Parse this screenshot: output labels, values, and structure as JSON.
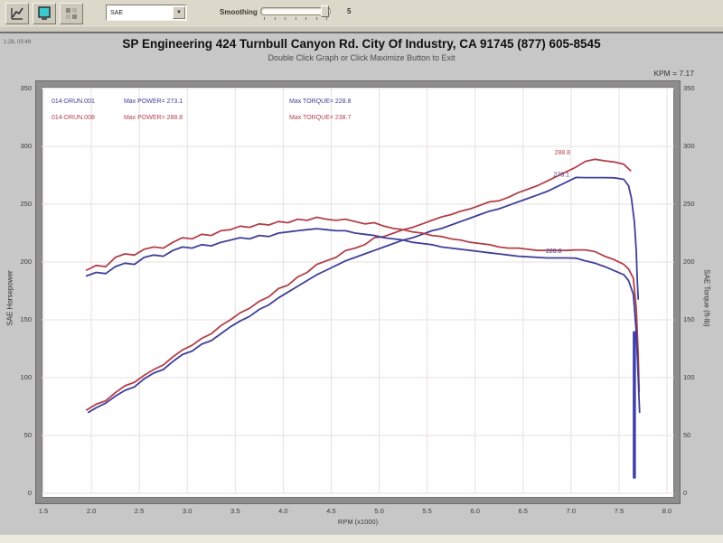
{
  "toolbar": {
    "buttons": [
      {
        "name": "graph"
      },
      {
        "name": "display"
      },
      {
        "name": "grid"
      }
    ],
    "combo_value": "SAE",
    "smoothing_label": "Smoothing",
    "smoothing_value": "5"
  },
  "header": {
    "timestamp": "1:28, 03:49",
    "title": "SP Engineering 424 Turnbull Canyon Rd. City Of Industry, CA 91745 (877) 605-8545",
    "subtitle": "Double Click Graph or Click Maximize Button to Exit",
    "rpm_readout": "KPM = 7.17"
  },
  "legend": {
    "rows": [
      {
        "run": "014-DRUN.001",
        "power": "Max POWER= 273.1",
        "torque": "Max TORQUE= 228.8",
        "color": "#3f3f99"
      },
      {
        "run": "014-DRUN.008",
        "power": "Max POWER= 288.8",
        "torque": "Max TORQUE= 238.7",
        "color": "#b2404a"
      }
    ]
  },
  "chart_data": {
    "type": "line",
    "xlabel": "RPM (x1000)",
    "ylabel_left": "SAE Horsepower",
    "ylabel_right": "SAE Torque (ft-lb)",
    "xlim": [
      1.5,
      8.0
    ],
    "ylim": [
      0,
      350
    ],
    "grid": true,
    "grid_color": "#e8dfdf",
    "legend_position": "top-left-inside",
    "x_ticks": [
      1.5,
      2.0,
      2.5,
      3.0,
      3.5,
      4.0,
      4.5,
      5.0,
      5.5,
      6.0,
      6.5,
      7.0,
      7.5,
      8.0
    ],
    "y_ticks": [
      0,
      50,
      100,
      150,
      200,
      250,
      300,
      350
    ],
    "series": [
      {
        "name": "run-008-power",
        "label": "014-DRUN.008 SAE Horsepower",
        "color": "#b2404a",
        "max": 288.8,
        "points": [
          [
            1.95,
            72
          ],
          [
            2.05,
            77
          ],
          [
            2.15,
            80
          ],
          [
            2.25,
            87
          ],
          [
            2.35,
            93
          ],
          [
            2.45,
            96
          ],
          [
            2.55,
            102
          ],
          [
            2.65,
            107
          ],
          [
            2.75,
            111
          ],
          [
            2.85,
            118
          ],
          [
            2.95,
            124
          ],
          [
            3.05,
            128
          ],
          [
            3.15,
            134
          ],
          [
            3.25,
            138
          ],
          [
            3.35,
            145
          ],
          [
            3.45,
            150
          ],
          [
            3.55,
            156
          ],
          [
            3.65,
            160
          ],
          [
            3.75,
            166
          ],
          [
            3.85,
            170
          ],
          [
            3.95,
            177
          ],
          [
            4.05,
            180
          ],
          [
            4.15,
            187
          ],
          [
            4.25,
            191
          ],
          [
            4.35,
            198
          ],
          [
            4.45,
            201
          ],
          [
            4.55,
            204
          ],
          [
            4.65,
            210
          ],
          [
            4.75,
            212
          ],
          [
            4.85,
            215
          ],
          [
            4.95,
            221
          ],
          [
            5.05,
            222
          ],
          [
            5.15,
            225
          ],
          [
            5.25,
            228
          ],
          [
            5.35,
            230
          ],
          [
            5.45,
            233
          ],
          [
            5.55,
            236
          ],
          [
            5.65,
            239
          ],
          [
            5.75,
            241
          ],
          [
            5.85,
            244
          ],
          [
            5.95,
            246
          ],
          [
            6.05,
            249
          ],
          [
            6.15,
            252
          ],
          [
            6.25,
            253
          ],
          [
            6.35,
            256
          ],
          [
            6.45,
            260
          ],
          [
            6.55,
            263
          ],
          [
            6.65,
            266
          ],
          [
            6.75,
            270
          ],
          [
            6.85,
            274
          ],
          [
            6.95,
            278
          ],
          [
            7.05,
            282
          ],
          [
            7.15,
            287
          ],
          [
            7.25,
            288.8
          ],
          [
            7.35,
            287.5
          ],
          [
            7.45,
            286.5
          ],
          [
            7.55,
            284.5
          ],
          [
            7.62,
            279
          ]
        ]
      },
      {
        "name": "run-001-power",
        "label": "014-DRUN.001 SAE Horsepower",
        "color": "#3f3f99",
        "max": 273.1,
        "points": [
          [
            1.97,
            70
          ],
          [
            2.05,
            74
          ],
          [
            2.15,
            78
          ],
          [
            2.25,
            84
          ],
          [
            2.35,
            89
          ],
          [
            2.45,
            92
          ],
          [
            2.55,
            99
          ],
          [
            2.65,
            104
          ],
          [
            2.75,
            107
          ],
          [
            2.85,
            114
          ],
          [
            2.95,
            120
          ],
          [
            3.05,
            123
          ],
          [
            3.15,
            129
          ],
          [
            3.25,
            132
          ],
          [
            3.35,
            138
          ],
          [
            3.45,
            144
          ],
          [
            3.55,
            149
          ],
          [
            3.65,
            153
          ],
          [
            3.75,
            159
          ],
          [
            3.85,
            163
          ],
          [
            3.95,
            169
          ],
          [
            4.05,
            174
          ],
          [
            4.15,
            179
          ],
          [
            4.25,
            184
          ],
          [
            4.35,
            189
          ],
          [
            4.45,
            193
          ],
          [
            4.55,
            197
          ],
          [
            4.65,
            201
          ],
          [
            4.75,
            204
          ],
          [
            4.85,
            207
          ],
          [
            4.95,
            210
          ],
          [
            5.05,
            213
          ],
          [
            5.15,
            216
          ],
          [
            5.25,
            219
          ],
          [
            5.35,
            221
          ],
          [
            5.45,
            224
          ],
          [
            5.55,
            227
          ],
          [
            5.65,
            229
          ],
          [
            5.75,
            232
          ],
          [
            5.85,
            235
          ],
          [
            5.95,
            238
          ],
          [
            6.05,
            241
          ],
          [
            6.15,
            244
          ],
          [
            6.25,
            246
          ],
          [
            6.35,
            249
          ],
          [
            6.45,
            252
          ],
          [
            6.55,
            255
          ],
          [
            6.65,
            258
          ],
          [
            6.75,
            261
          ],
          [
            6.85,
            265
          ],
          [
            6.95,
            269
          ],
          [
            7.05,
            273.1
          ],
          [
            7.15,
            273
          ],
          [
            7.25,
            273
          ],
          [
            7.35,
            273
          ],
          [
            7.45,
            272.8
          ],
          [
            7.55,
            271.5
          ],
          [
            7.6,
            266
          ],
          [
            7.63,
            255
          ],
          [
            7.66,
            235
          ],
          [
            7.68,
            210
          ],
          [
            7.69,
            185
          ],
          [
            7.7,
            168
          ]
        ]
      },
      {
        "name": "run-008-torque",
        "label": "014-DRUN.008 SAE Torque",
        "color": "#b2404a",
        "max": 238.7,
        "points": [
          [
            1.95,
            193
          ],
          [
            2.05,
            197
          ],
          [
            2.15,
            196
          ],
          [
            2.25,
            204
          ],
          [
            2.35,
            207
          ],
          [
            2.45,
            206
          ],
          [
            2.55,
            211
          ],
          [
            2.65,
            213
          ],
          [
            2.75,
            212
          ],
          [
            2.85,
            217
          ],
          [
            2.95,
            221
          ],
          [
            3.05,
            220
          ],
          [
            3.15,
            224
          ],
          [
            3.25,
            223
          ],
          [
            3.35,
            227
          ],
          [
            3.45,
            228
          ],
          [
            3.55,
            231
          ],
          [
            3.65,
            230
          ],
          [
            3.75,
            233
          ],
          [
            3.85,
            232
          ],
          [
            3.95,
            235
          ],
          [
            4.05,
            234
          ],
          [
            4.15,
            237
          ],
          [
            4.25,
            236
          ],
          [
            4.35,
            238.7
          ],
          [
            4.45,
            237
          ],
          [
            4.55,
            236
          ],
          [
            4.65,
            237
          ],
          [
            4.75,
            235
          ],
          [
            4.85,
            233
          ],
          [
            4.95,
            234
          ],
          [
            5.05,
            231
          ],
          [
            5.15,
            229
          ],
          [
            5.25,
            228
          ],
          [
            5.35,
            226
          ],
          [
            5.45,
            225
          ],
          [
            5.55,
            223
          ],
          [
            5.65,
            222
          ],
          [
            5.75,
            220
          ],
          [
            5.85,
            219
          ],
          [
            5.95,
            217
          ],
          [
            6.05,
            216
          ],
          [
            6.15,
            215
          ],
          [
            6.25,
            213
          ],
          [
            6.35,
            212
          ],
          [
            6.45,
            212
          ],
          [
            6.55,
            211
          ],
          [
            6.65,
            210
          ],
          [
            6.75,
            210
          ],
          [
            6.85,
            210
          ],
          [
            6.95,
            210
          ],
          [
            7.05,
            210.5
          ],
          [
            7.15,
            210.5
          ],
          [
            7.25,
            209
          ],
          [
            7.35,
            205
          ],
          [
            7.45,
            202
          ],
          [
            7.55,
            198
          ],
          [
            7.6,
            194
          ],
          [
            7.65,
            186
          ],
          [
            7.68,
            160
          ],
          [
            7.7,
            120
          ],
          [
            7.71,
            88
          ]
        ]
      },
      {
        "name": "run-001-torque",
        "label": "014-DRUN.001 SAE Torque",
        "color": "#3f3f99",
        "max": 228.8,
        "points": [
          [
            1.95,
            188
          ],
          [
            2.05,
            191
          ],
          [
            2.15,
            190
          ],
          [
            2.25,
            196
          ],
          [
            2.35,
            199
          ],
          [
            2.45,
            198
          ],
          [
            2.55,
            204
          ],
          [
            2.65,
            206
          ],
          [
            2.75,
            205
          ],
          [
            2.85,
            210
          ],
          [
            2.95,
            213
          ],
          [
            3.05,
            212
          ],
          [
            3.15,
            215
          ],
          [
            3.25,
            214
          ],
          [
            3.35,
            217
          ],
          [
            3.45,
            219
          ],
          [
            3.55,
            221
          ],
          [
            3.65,
            220
          ],
          [
            3.75,
            223
          ],
          [
            3.85,
            222
          ],
          [
            3.95,
            225
          ],
          [
            4.05,
            226
          ],
          [
            4.15,
            227
          ],
          [
            4.25,
            228
          ],
          [
            4.35,
            228.8
          ],
          [
            4.45,
            228
          ],
          [
            4.55,
            227
          ],
          [
            4.65,
            227
          ],
          [
            4.75,
            225
          ],
          [
            4.85,
            224
          ],
          [
            4.95,
            223
          ],
          [
            5.05,
            221
          ],
          [
            5.15,
            220
          ],
          [
            5.25,
            219
          ],
          [
            5.35,
            217
          ],
          [
            5.45,
            216
          ],
          [
            5.55,
            215
          ],
          [
            5.65,
            213
          ],
          [
            5.75,
            212
          ],
          [
            5.85,
            211
          ],
          [
            5.95,
            210
          ],
          [
            6.05,
            209
          ],
          [
            6.15,
            208
          ],
          [
            6.25,
            207
          ],
          [
            6.35,
            206
          ],
          [
            6.45,
            205
          ],
          [
            6.55,
            204.5
          ],
          [
            6.65,
            204
          ],
          [
            6.75,
            203.5
          ],
          [
            6.85,
            203.5
          ],
          [
            6.95,
            203.5
          ],
          [
            7.05,
            203.3
          ],
          [
            7.15,
            201
          ],
          [
            7.25,
            199
          ],
          [
            7.35,
            196
          ],
          [
            7.45,
            192.5
          ],
          [
            7.55,
            189
          ],
          [
            7.6,
            184
          ],
          [
            7.65,
            172
          ],
          [
            7.68,
            140
          ],
          [
            7.7,
            100
          ],
          [
            7.715,
            70
          ]
        ]
      },
      {
        "name": "run-001-dropout",
        "label": "run end dropout",
        "color": "#4040a8",
        "width": 3.5,
        "points": [
          [
            7.66,
            139
          ],
          [
            7.66,
            14
          ]
        ]
      }
    ],
    "annotations": [
      {
        "text": "288.8",
        "x": 6.91,
        "y": 293,
        "color": "#b2404a"
      },
      {
        "text": "273.1",
        "x": 6.9,
        "y": 274,
        "color": "#3f3f99"
      },
      {
        "text": "228.8",
        "x": 6.82,
        "y": 208,
        "color": "#3f3f99"
      }
    ]
  }
}
